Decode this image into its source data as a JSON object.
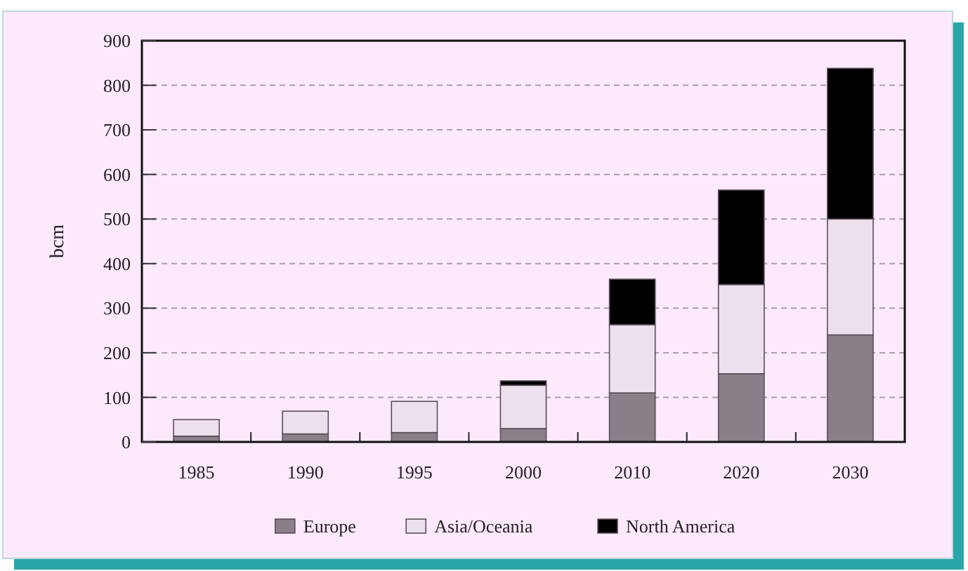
{
  "chart_data": {
    "type": "bar",
    "ylabel": "bcm",
    "categories": [
      "1985",
      "1990",
      "1995",
      "2000",
      "2010",
      "2020",
      "2030"
    ],
    "series": [
      {
        "name": "Europe",
        "color": "#8a7f88",
        "values": [
          13,
          18,
          21,
          30,
          110,
          153,
          240
        ]
      },
      {
        "name": "Asia/Oceania",
        "color": "#ebe0eb",
        "values": [
          37,
          51,
          70,
          97,
          153,
          200,
          260
        ]
      },
      {
        "name": "North America",
        "color": "#000000",
        "values": [
          0,
          0,
          0,
          10,
          102,
          212,
          338
        ]
      }
    ],
    "stacked": true,
    "ylim": [
      0,
      900
    ],
    "yticks": [
      0,
      100,
      200,
      300,
      400,
      500,
      600,
      700,
      800,
      900
    ],
    "grid": "y",
    "legend": "bottom"
  }
}
